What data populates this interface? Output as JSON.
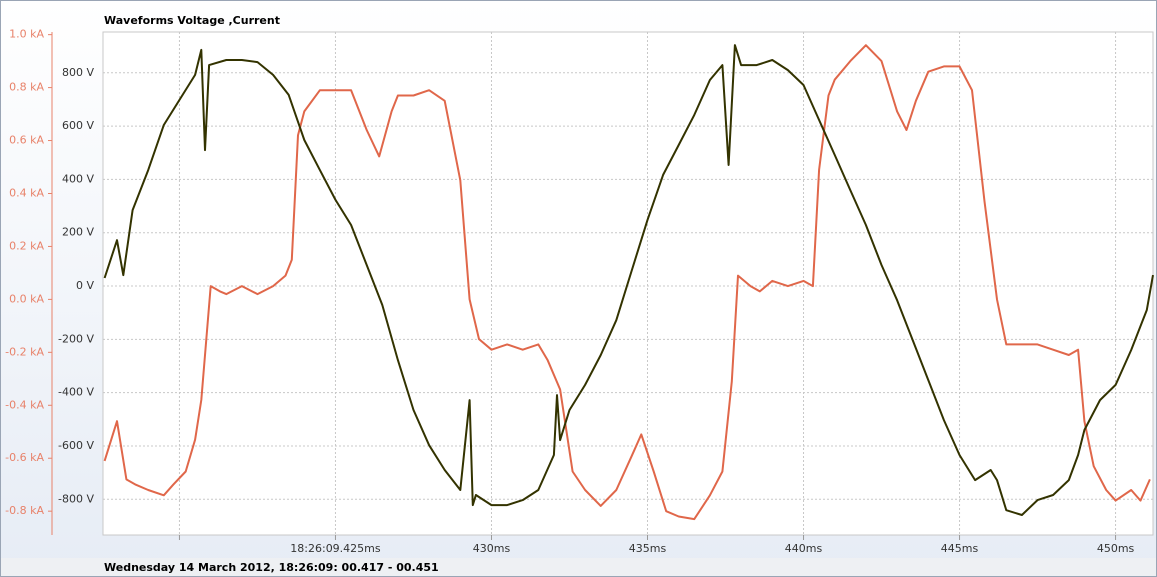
{
  "chart_data": {
    "type": "line",
    "title": "Waveforms Voltage ,Current",
    "footer": "Wednesday 14 March 2012, 18:26:09: 00.417 - 00.451",
    "grid": true,
    "xlim": [
      417.55,
      451.2
    ],
    "xticks": [
      {
        "value": 420,
        "label": null
      },
      {
        "value": 425,
        "label": "18:26:09.425ms"
      },
      {
        "value": 430,
        "label": "430ms"
      },
      {
        "value": 435,
        "label": "435ms"
      },
      {
        "value": 440,
        "label": "440ms"
      },
      {
        "value": 445,
        "label": "445ms"
      },
      {
        "value": 450,
        "label": "450ms"
      }
    ],
    "ylim": [
      -934,
      953
    ],
    "yticks": [
      {
        "value": 800,
        "label": "800 V"
      },
      {
        "value": 600,
        "label": "600 V"
      },
      {
        "value": 400,
        "label": "400 V"
      },
      {
        "value": 200,
        "label": "200 V"
      },
      {
        "value": 0,
        "label": "0 V"
      },
      {
        "value": -200,
        "label": "-200 V"
      },
      {
        "value": -400,
        "label": "-400 V"
      },
      {
        "value": -600,
        "label": "-600 V"
      },
      {
        "value": -800,
        "label": "-800 V"
      }
    ],
    "y2lim": [
      -0.89,
      1.01
    ],
    "y2ticks": [
      {
        "value": 1.0,
        "label": "1.0 kA"
      },
      {
        "value": 0.8,
        "label": "0.8 kA"
      },
      {
        "value": 0.6,
        "label": "0.6 kA"
      },
      {
        "value": 0.4,
        "label": "0.4 kA"
      },
      {
        "value": 0.2,
        "label": "0.2 kA"
      },
      {
        "value": 0,
        "label": "0.0 kA"
      },
      {
        "value": -0.2,
        "label": "-0.2 kA"
      },
      {
        "value": -0.4,
        "label": "-0.4 kA"
      },
      {
        "value": -0.6,
        "label": "-0.6 kA"
      },
      {
        "value": -0.8,
        "label": "-0.8 kA"
      }
    ],
    "y2color": "#e8826a",
    "series": [
      {
        "color": "#e0674a",
        "axis": "y2",
        "x": [
          417.6,
          418.0,
          418.3,
          418.6,
          419.0,
          419.5,
          419.8,
          420.2,
          420.5,
          420.7,
          421.0,
          421.3,
          421.5,
          422.0,
          422.5,
          423.0,
          423.4,
          423.6,
          423.8,
          424.0,
          424.5,
          425.0,
          425.5,
          426.0,
          426.4,
          426.8,
          427.0,
          427.5,
          428.0,
          428.5,
          429.0,
          429.3,
          429.6,
          430.0,
          430.5,
          431.0,
          431.5,
          431.8,
          432.2,
          432.6,
          433.0,
          433.5,
          434.0,
          434.5,
          434.8,
          435.2,
          435.6,
          436.0,
          436.5,
          437.0,
          437.4,
          437.7,
          437.9,
          438.3,
          438.6,
          439.0,
          439.5,
          440.0,
          440.3,
          440.5,
          440.8,
          441.0,
          441.5,
          442.0,
          442.5,
          443.0,
          443.3,
          443.6,
          444.0,
          444.5,
          445.0,
          445.4,
          445.8,
          446.2,
          446.5,
          447.0,
          447.5,
          448.0,
          448.5,
          448.8,
          449.0,
          449.3,
          449.7,
          450.0,
          450.5,
          450.8,
          451.1
        ],
        "values": [
          -0.61,
          -0.46,
          -0.68,
          -0.7,
          -0.72,
          -0.74,
          -0.7,
          -0.65,
          -0.53,
          -0.38,
          0.05,
          0.03,
          0.02,
          0.05,
          0.02,
          0.05,
          0.09,
          0.15,
          0.62,
          0.71,
          0.79,
          0.79,
          0.79,
          0.64,
          0.54,
          0.71,
          0.77,
          0.77,
          0.79,
          0.75,
          0.45,
          0.0,
          -0.15,
          -0.19,
          -0.17,
          -0.19,
          -0.17,
          -0.23,
          -0.34,
          -0.65,
          -0.72,
          -0.78,
          -0.72,
          -0.59,
          -0.51,
          -0.65,
          -0.8,
          -0.82,
          -0.83,
          -0.74,
          -0.65,
          -0.31,
          0.09,
          0.05,
          0.03,
          0.07,
          0.05,
          0.07,
          0.05,
          0.49,
          0.77,
          0.83,
          0.9,
          0.96,
          0.9,
          0.71,
          0.64,
          0.75,
          0.86,
          0.88,
          0.88,
          0.79,
          0.37,
          0.0,
          -0.17,
          -0.17,
          -0.17,
          -0.19,
          -0.21,
          -0.19,
          -0.46,
          -0.63,
          -0.72,
          -0.76,
          -0.72,
          -0.76,
          -0.68
        ]
      },
      {
        "color": "#333300",
        "x": [
          417.6,
          418.0,
          418.2,
          418.5,
          419.0,
          419.5,
          420.0,
          420.5,
          420.7,
          420.82,
          420.95,
          421.5,
          422.0,
          422.5,
          423.0,
          423.5,
          424.0,
          424.5,
          425.0,
          425.5,
          426.0,
          426.5,
          427.0,
          427.5,
          428.0,
          428.5,
          429.0,
          429.3,
          429.4,
          429.5,
          430.0,
          430.5,
          431.0,
          431.5,
          432.0,
          432.1,
          432.2,
          432.5,
          433.0,
          433.5,
          434.0,
          434.5,
          435.0,
          435.5,
          436.0,
          436.5,
          437.0,
          437.4,
          437.6,
          437.8,
          438.0,
          438.5,
          439.0,
          439.5,
          440.0,
          440.5,
          441.0,
          441.5,
          442.0,
          442.5,
          443.0,
          443.5,
          444.0,
          444.5,
          445.0,
          445.5,
          446.0,
          446.2,
          446.5,
          447.0,
          447.5,
          448.0,
          448.5,
          448.8,
          449.0,
          449.5,
          450.0,
          450.5,
          451.0,
          451.2
        ],
        "values": [
          30,
          172,
          41,
          285,
          435,
          604,
          698,
          792,
          886,
          510,
          829,
          848,
          848,
          840,
          792,
          717,
          548,
          435,
          323,
          229,
          79,
          -71,
          -278,
          -465,
          -597,
          -690,
          -765,
          -428,
          -822,
          -784,
          -822,
          -822,
          -803,
          -765,
          -634,
          -409,
          -578,
          -465,
          -371,
          -259,
          -128,
          60,
          248,
          417,
          529,
          642,
          773,
          829,
          454,
          904,
          829,
          829,
          848,
          810,
          754,
          623,
          492,
          360,
          229,
          79,
          -53,
          -203,
          -353,
          -503,
          -634,
          -728,
          -690,
          -728,
          -841,
          -859,
          -803,
          -784,
          -728,
          -634,
          -540,
          -428,
          -371,
          -240,
          -90,
          41
        ]
      }
    ]
  }
}
